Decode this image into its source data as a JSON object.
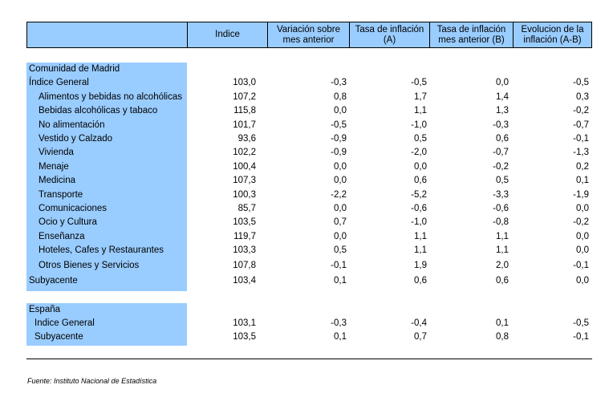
{
  "header": {
    "col0": "",
    "col1": "Indice",
    "col2": "Variación sobre mes anterior",
    "col3": "Tasa de inflación (A)",
    "col4": "Tasa de inflación mes anterior (B)",
    "col5": "Evolucion de la inflación (A-B)"
  },
  "madrid": {
    "title": "Comunidad de Madrid",
    "rows": [
      {
        "label": "Índice General",
        "v": [
          "103,0",
          "-0,3",
          "-0,5",
          "0,0",
          "-0,5"
        ]
      },
      {
        "label": "Alimentos y bebidas no alcohólicas",
        "v": [
          "107,2",
          "0,8",
          "1,7",
          "1,4",
          "0,3"
        ]
      },
      {
        "label": "Bebidas alcohólicas y tabaco",
        "v": [
          "115,8",
          "0,0",
          "1,1",
          "1,3",
          "-0,2"
        ]
      },
      {
        "label": "No alimentación",
        "v": [
          "101,7",
          "-0,5",
          "-1,0",
          "-0,3",
          "-0,7"
        ]
      },
      {
        "label": "Vestido y Calzado",
        "v": [
          "93,6",
          "-0,9",
          "0,5",
          "0,6",
          "-0,1"
        ]
      },
      {
        "label": "Vivienda",
        "v": [
          "102,2",
          "-0,9",
          "-2,0",
          "-0,7",
          "-1,3"
        ]
      },
      {
        "label": "Menaje",
        "v": [
          "100,4",
          "0,0",
          "0,0",
          "-0,2",
          "0,2"
        ]
      },
      {
        "label": "Medicina",
        "v": [
          "107,3",
          "0,0",
          "0,6",
          "0,5",
          "0,1"
        ]
      },
      {
        "label": "Transporte",
        "v": [
          "100,3",
          "-2,2",
          "-5,2",
          "-3,3",
          "-1,9"
        ]
      },
      {
        "label": "Comunicaciones",
        "v": [
          "85,7",
          "0,0",
          "-0,6",
          "-0,6",
          "0,0"
        ]
      },
      {
        "label": "Ocio y Cultura",
        "v": [
          "103,5",
          "0,7",
          "-1,0",
          "-0,8",
          "-0,2"
        ]
      },
      {
        "label": "Enseñanza",
        "v": [
          "119,7",
          "0,0",
          "1,1",
          "1,1",
          "0,0"
        ]
      },
      {
        "label": "Hoteles, Cafes y Restaurantes",
        "v": [
          "103,3",
          "0,5",
          "1,1",
          "1,1",
          "0,0"
        ]
      },
      {
        "label": "Otros Bienes y Servicios",
        "v": [
          "107,8",
          "-0,1",
          "1,9",
          "2,0",
          "-0,1"
        ]
      },
      {
        "label": "Subyacente",
        "v": [
          "103,4",
          "0,1",
          "0,6",
          "0,6",
          "0,0"
        ]
      }
    ]
  },
  "espana": {
    "title": "España",
    "rows": [
      {
        "label": "Indice General",
        "v": [
          "103,1",
          "-0,3",
          "-0,4",
          "0,1",
          "-0,5"
        ]
      },
      {
        "label": "Subyacente",
        "v": [
          "103,5",
          "0,1",
          "0,7",
          "0,8",
          "-0,1"
        ]
      }
    ]
  },
  "footer": {
    "source": "Fuente: Instituto Nacional de Estadística"
  }
}
